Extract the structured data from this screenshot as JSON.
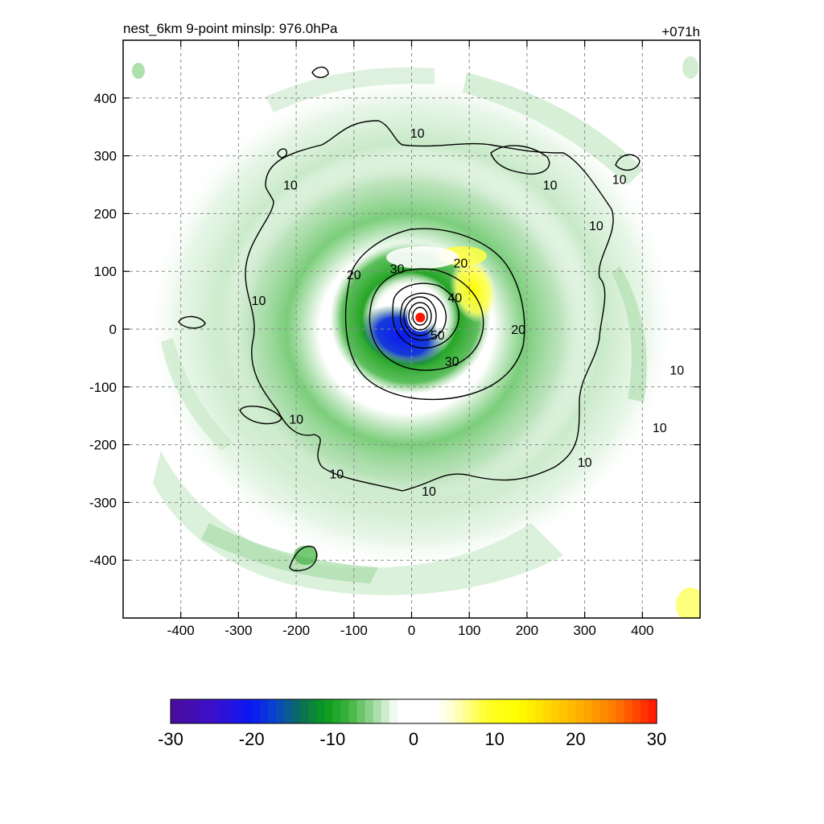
{
  "chart_data": {
    "type": "heatmap",
    "title_left": "nest_6km  9-point minslp: 976.0hPa",
    "title_right": "+071h",
    "xlabel": "",
    "ylabel": "",
    "xlim": [
      -500,
      500
    ],
    "ylim": [
      -500,
      500
    ],
    "x_ticks": [
      -400,
      -300,
      -200,
      -100,
      0,
      100,
      200,
      300,
      400
    ],
    "y_ticks": [
      -400,
      -300,
      -200,
      -100,
      0,
      100,
      200,
      300,
      400
    ],
    "x_tick_labels": [
      "-400",
      "-300",
      "-200",
      "-100",
      "0",
      "100",
      "200",
      "300",
      "400"
    ],
    "y_tick_labels": [
      "-400",
      "-300",
      "-200",
      "-100",
      "0",
      "100",
      "200",
      "300",
      "400"
    ],
    "grid": true,
    "storm_center": [
      15,
      20
    ],
    "contour_labels": [
      {
        "text": "10",
        "x": 10,
        "y": 340
      },
      {
        "text": "10",
        "x": 240,
        "y": 250
      },
      {
        "text": "10",
        "x": 320,
        "y": 180
      },
      {
        "text": "10",
        "x": 360,
        "y": 260
      },
      {
        "text": "10",
        "x": 460,
        "y": -70
      },
      {
        "text": "10",
        "x": 430,
        "y": -170
      },
      {
        "text": "10",
        "x": 300,
        "y": -230
      },
      {
        "text": "10",
        "x": 30,
        "y": -280
      },
      {
        "text": "10",
        "x": -130,
        "y": -250
      },
      {
        "text": "10",
        "x": -200,
        "y": -155
      },
      {
        "text": "10",
        "x": -265,
        "y": 50
      },
      {
        "text": "10",
        "x": -210,
        "y": 250
      },
      {
        "text": "20",
        "x": -100,
        "y": 95
      },
      {
        "text": "20",
        "x": 185,
        "y": 0
      },
      {
        "text": "30",
        "x": -25,
        "y": 105
      },
      {
        "text": "30",
        "x": 70,
        "y": -55
      },
      {
        "text": "20",
        "x": 85,
        "y": 115
      },
      {
        "text": "40",
        "x": 75,
        "y": 55
      },
      {
        "text": "50",
        "x": 45,
        "y": -10
      }
    ],
    "colorbar": {
      "min": -30,
      "max": 30,
      "ticks": [
        -30,
        -20,
        -10,
        0,
        10,
        20,
        30
      ],
      "tick_labels": [
        "-30",
        "-20",
        "-10",
        "0",
        "10",
        "20",
        "30"
      ],
      "stops": [
        {
          "v": -30,
          "color": "#4b0c9a"
        },
        {
          "v": -25,
          "color": "#3c10c8"
        },
        {
          "v": -20,
          "color": "#0a18f5"
        },
        {
          "v": -17,
          "color": "#0a46c8"
        },
        {
          "v": -14,
          "color": "#0b6d5a"
        },
        {
          "v": -11,
          "color": "#0a9a1e"
        },
        {
          "v": -8,
          "color": "#3cb43c"
        },
        {
          "v": -5,
          "color": "#9ad89a"
        },
        {
          "v": -3,
          "color": "#dff3df"
        },
        {
          "v": -2,
          "color": "#ffffff"
        },
        {
          "v": 3,
          "color": "#ffffff"
        },
        {
          "v": 5,
          "color": "#ffffc8"
        },
        {
          "v": 9,
          "color": "#ffff28"
        },
        {
          "v": 13,
          "color": "#ffff00"
        },
        {
          "v": 17,
          "color": "#ffd200"
        },
        {
          "v": 21,
          "color": "#ffaa00"
        },
        {
          "v": 25,
          "color": "#ff7800"
        },
        {
          "v": 30,
          "color": "#ff1400"
        }
      ]
    }
  }
}
